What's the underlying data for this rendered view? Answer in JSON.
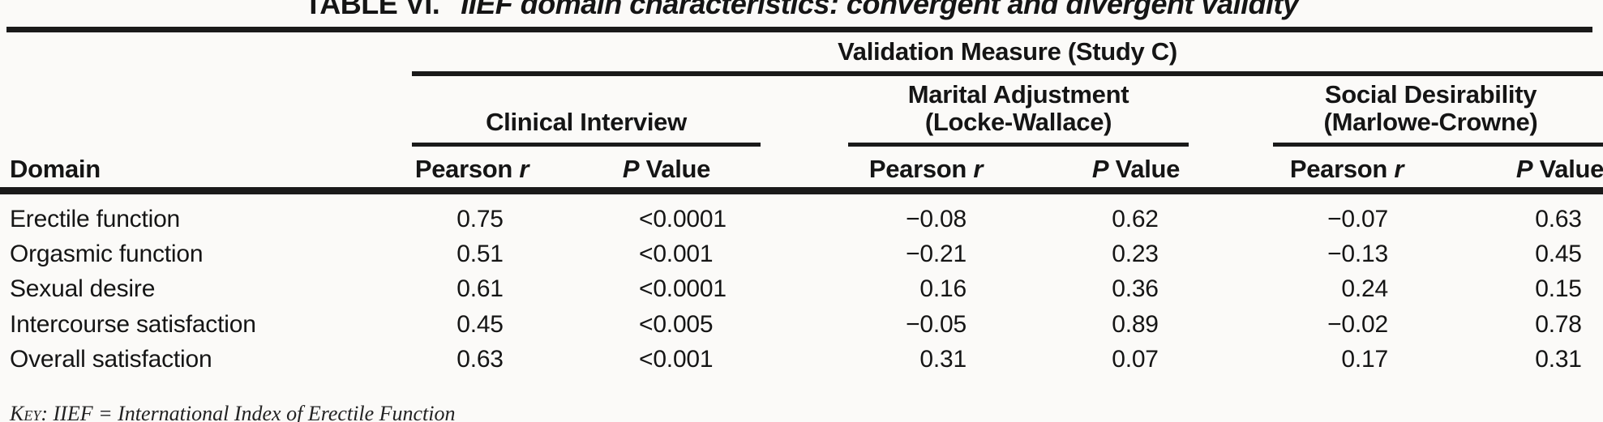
{
  "title": {
    "label": "TABLE VI.",
    "text": "IIEF domain characteristics: convergent and divergent validity"
  },
  "table": {
    "span_header": "Validation Measure (Study C)",
    "row_header": "Domain",
    "groups": [
      {
        "line1": "Clinical Interview",
        "line2": ""
      },
      {
        "line1": "Marital Adjustment",
        "line2": "(Locke-Wallace)"
      },
      {
        "line1": "Social Desirability",
        "line2": "(Marlowe-Crowne)"
      }
    ],
    "subheaders": {
      "pearson_word": "Pearson",
      "pearson_var": "r",
      "pvalue_var": "P",
      "pvalue_word": "Value"
    },
    "rows": [
      {
        "domain": "Erectile function",
        "cells": [
          "0.75",
          "<0.0001",
          "−0.08",
          "0.62",
          "−0.07",
          "0.63"
        ]
      },
      {
        "domain": "Orgasmic function",
        "cells": [
          "0.51",
          "<0.001",
          "−0.21",
          "0.23",
          "−0.13",
          "0.45"
        ]
      },
      {
        "domain": "Sexual desire",
        "cells": [
          "0.61",
          "<0.0001",
          "0.16",
          "0.36",
          "0.24",
          "0.15"
        ]
      },
      {
        "domain": "Intercourse satisfaction",
        "cells": [
          "0.45",
          "<0.005",
          "−0.05",
          "0.89",
          "−0.02",
          "0.78"
        ]
      },
      {
        "domain": "Overall satisfaction",
        "cells": [
          "0.63",
          "<0.001",
          "0.31",
          "0.07",
          "0.17",
          "0.31"
        ]
      }
    ]
  },
  "footnote": {
    "key": "Key:",
    "text": "IIEF = International Index of Erectile Function"
  }
}
